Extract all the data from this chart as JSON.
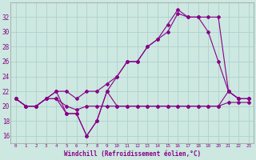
{
  "xlabel": "Windchill (Refroidissement éolien,°C)",
  "x_ticks": [
    0,
    1,
    2,
    3,
    4,
    5,
    6,
    7,
    8,
    9,
    10,
    11,
    12,
    13,
    14,
    15,
    16,
    17,
    18,
    19,
    20,
    21,
    22,
    23
  ],
  "ylim": [
    15,
    34
  ],
  "xlim": [
    -0.5,
    23.5
  ],
  "yticks": [
    16,
    18,
    20,
    22,
    24,
    26,
    28,
    30,
    32
  ],
  "background_color": "#cce8e0",
  "grid_color": "#aacccc",
  "line_color": "#880088",
  "series": [
    {
      "x": [
        0,
        1,
        2,
        3,
        4,
        5,
        6,
        7,
        8,
        9,
        10,
        11,
        12,
        13,
        14,
        15,
        16,
        17,
        18,
        19,
        20,
        21,
        22,
        23
      ],
      "y": [
        21,
        20,
        20,
        21,
        21,
        20,
        19.5,
        20,
        20,
        20,
        20,
        20,
        20,
        20,
        20,
        20,
        20,
        20,
        20,
        20,
        20,
        20.5,
        20.5,
        20.5
      ]
    },
    {
      "x": [
        0,
        1,
        2,
        3,
        4,
        5,
        6,
        7,
        8,
        9,
        10,
        11,
        12,
        13,
        14,
        15,
        16,
        17,
        18,
        19,
        20,
        21,
        22,
        23
      ],
      "y": [
        21,
        20,
        20,
        21,
        21,
        19,
        19,
        16,
        18,
        22,
        20,
        20,
        20,
        20,
        20,
        20,
        20,
        20,
        20,
        20,
        20,
        22,
        21,
        21
      ]
    },
    {
      "x": [
        0,
        1,
        2,
        3,
        4,
        5,
        6,
        7,
        8,
        9,
        10,
        11,
        12,
        13,
        14,
        15,
        16,
        17,
        18,
        19,
        20,
        21,
        22,
        23
      ],
      "y": [
        21,
        20,
        20,
        21,
        22,
        22,
        21,
        22,
        22,
        23,
        24,
        26,
        26,
        28,
        29,
        31,
        33,
        32,
        32,
        32,
        32,
        22,
        21,
        21
      ]
    },
    {
      "x": [
        0,
        1,
        2,
        3,
        4,
        5,
        6,
        7,
        8,
        9,
        10,
        11,
        12,
        13,
        14,
        15,
        16,
        17,
        18,
        19,
        20,
        21,
        22,
        23
      ],
      "y": [
        21,
        20,
        20,
        21,
        22,
        19,
        19,
        16,
        18,
        22,
        24,
        26,
        26,
        28,
        29,
        30,
        32.5,
        32,
        32,
        30,
        26,
        22,
        21,
        21
      ]
    }
  ]
}
